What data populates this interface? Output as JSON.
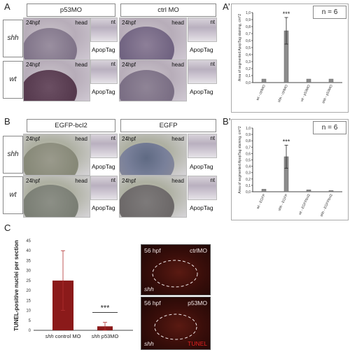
{
  "panels": {
    "A": {
      "letter": "A",
      "col1": "p53MO",
      "col2": "ctrl MO",
      "row1": "shh",
      "row2": "wt",
      "stage": "24hpf",
      "head": "head",
      "nt": "nt",
      "apoptag": "ApopTag"
    },
    "A_prime": {
      "letter": "A’",
      "n_label": "n = 6",
      "ylabel": "Area of segmented ApopTag staining, cm^2",
      "sig": "***"
    },
    "B": {
      "letter": "B",
      "col1": "EGFP-bcl2",
      "col2": "EGFP",
      "row1": "shh",
      "row2": "wt",
      "stage": "24hpf",
      "head": "head",
      "nt": "nt",
      "apoptag": "ApopTag"
    },
    "B_prime": {
      "letter": "B’",
      "n_label": "n = 6",
      "ylabel": "Area of segmented ApopTag staining, cm^2",
      "sig": "***"
    },
    "C": {
      "letter": "C",
      "ylabel": "TUNEL-positive nuclei per section",
      "sig": "***",
      "img1_stage": "56 hpf",
      "img1_label": "ctrlMO",
      "img1_geno": "shh",
      "img2_stage": "56 hpf",
      "img2_label": "p53MO",
      "img2_geno": "shh",
      "img2_stain": "TUNEL"
    }
  },
  "colors": {
    "bar_gray": "#8c8c8c",
    "bar_red": "#8b1a1a",
    "tunel_red": "#d02020"
  },
  "chart_data": [
    {
      "type": "bar",
      "panel": "A’",
      "categories": [
        "wt - ctrlMO",
        "shh - ctrlMO",
        "wt - p53MO",
        "shh - p53MO"
      ],
      "values": [
        0.05,
        0.74,
        0.05,
        0.05
      ],
      "errors": [
        0.01,
        0.19,
        0.01,
        0.01
      ],
      "ylabel": "Area of segmented ApopTag staining, cm^2",
      "ylim": [
        0,
        1.0
      ],
      "yticks": [
        "0,0",
        "0,1",
        "0,2",
        "0,3",
        "0,4",
        "0,5",
        "0,6",
        "0,7",
        "0,8",
        "0,9",
        "1,0"
      ],
      "annotation": "***"
    },
    {
      "type": "bar",
      "panel": "B’",
      "categories": [
        "wt - EGFP",
        "shh - EGFP",
        "wt - EGFPbcl2",
        "shh - EGFPbcl2"
      ],
      "values": [
        0.04,
        0.55,
        0.03,
        0.02
      ],
      "errors": [
        0.01,
        0.18,
        0.01,
        0.01
      ],
      "ylabel": "Area of segmented ApopTag staining, cm^2",
      "ylim": [
        0,
        1.0
      ],
      "yticks": [
        "0,0",
        "0,1",
        "0,2",
        "0,3",
        "0,4",
        "0,5",
        "0,6",
        "0,7",
        "0,8",
        "0,9",
        "1,0"
      ],
      "annotation": "***"
    },
    {
      "type": "bar",
      "panel": "C",
      "categories": [
        "shh control MO",
        "shh p53MO"
      ],
      "category_genotype": [
        "shh",
        "shh"
      ],
      "category_treatment": [
        "control MO",
        "p53MO"
      ],
      "values": [
        25,
        2
      ],
      "errors": [
        15,
        2
      ],
      "ylabel": "TUNEL-positive nuclei per section",
      "ylim": [
        0,
        45
      ],
      "yticks": [
        0,
        5,
        10,
        15,
        20,
        25,
        30,
        35,
        40,
        45
      ],
      "annotation": "***"
    }
  ]
}
